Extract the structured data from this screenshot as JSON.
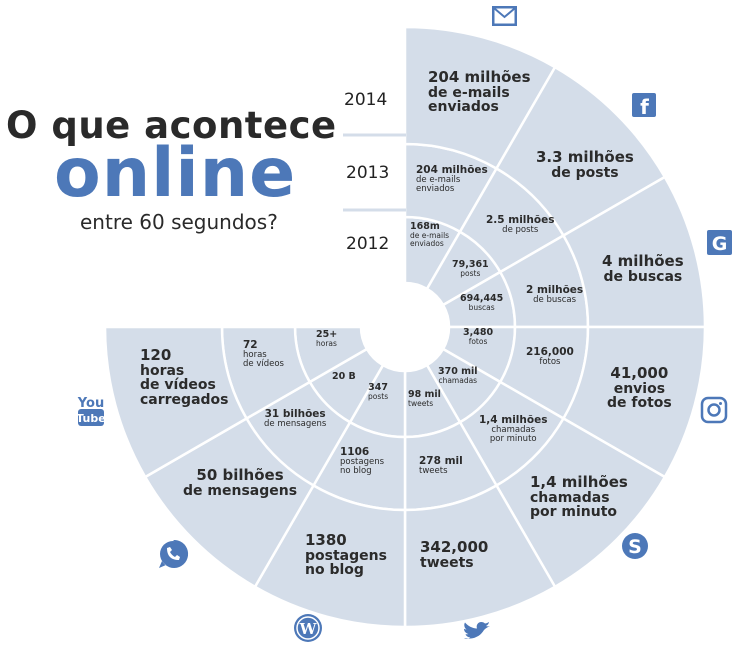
{
  "title": {
    "line1": "O que acontece",
    "line2": "online",
    "line3": "entre 60 segundos?"
  },
  "years": [
    "2014",
    "2013",
    "2012"
  ],
  "colors": {
    "segment_fill": "#d4dde9",
    "icon_blue": "#4d78b8",
    "text": "#2b2b2b"
  },
  "segments": {
    "email": {
      "y2014": [
        "204 milhões",
        "de e-mails",
        "enviados"
      ],
      "y2013": [
        "204 milhões",
        "de e-mails",
        "enviados"
      ],
      "y2012": [
        "168m",
        "de e-mails",
        "enviados"
      ]
    },
    "facebook": {
      "y2014": [
        "3.3 milhões",
        "de posts"
      ],
      "y2013": [
        "2.5 milhões",
        "de posts"
      ],
      "y2012": [
        "79,361",
        "posts"
      ]
    },
    "google": {
      "y2014": [
        "4 milhões",
        "de buscas"
      ],
      "y2013": [
        "2 milhões",
        "de buscas"
      ],
      "y2012": [
        "694,445",
        "buscas"
      ]
    },
    "instagram": {
      "y2014": [
        "41,000",
        "envios",
        "de fotos"
      ],
      "y2013": [
        "216,000",
        "fotos"
      ],
      "y2012": [
        "3,480",
        "fotos"
      ]
    },
    "skype": {
      "y2014": [
        "1,4 milhões",
        "chamadas",
        "por minuto"
      ],
      "y2013": [
        "1,4 milhões",
        "chamadas",
        "por minuto"
      ],
      "y2012": [
        "370 mil",
        "chamadas"
      ]
    },
    "twitter": {
      "y2014": [
        "342,000",
        "tweets"
      ],
      "y2013": [
        "278 mil",
        "tweets"
      ],
      "y2012": [
        "98 mil",
        "tweets"
      ]
    },
    "wordpress": {
      "y2014": [
        "1380",
        "postagens",
        "no blog"
      ],
      "y2013": [
        "1106",
        "postagens",
        "no blog"
      ],
      "y2012": [
        "347",
        "posts"
      ]
    },
    "whatsapp": {
      "y2014": [
        "50 bilhões",
        "de mensagens"
      ],
      "y2013": [
        "31 bilhões",
        "de mensagens"
      ],
      "y2012": [
        "20 B"
      ]
    },
    "youtube": {
      "y2014": [
        "120",
        "horas",
        "de vídeos",
        "carregados"
      ],
      "y2013": [
        "72",
        "horas",
        "de vídeos"
      ],
      "y2012": [
        "25+",
        "horas"
      ]
    }
  },
  "icons": {
    "email": "mail-icon",
    "facebook": "facebook-icon",
    "google": "google-icon",
    "instagram": "instagram-icon",
    "skype": "skype-icon",
    "twitter": "twitter-icon",
    "wordpress": "wordpress-icon",
    "whatsapp": "whatsapp-icon",
    "youtube": "youtube-icon",
    "youtube_text": [
      "You",
      "Tube"
    ]
  }
}
